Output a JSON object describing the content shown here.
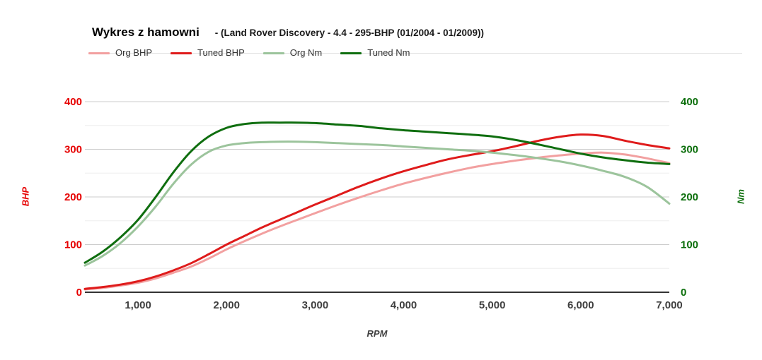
{
  "header": {
    "title": "Wykres z hamowni",
    "subtitle": "- (Land Rover Discovery - 4.4 - 295-BHP (01/2004 - 01/2009))"
  },
  "axes": {
    "left_title": "BHP",
    "right_title": "Nm",
    "bottom_title": "RPM",
    "left_color": "#e60000",
    "right_color": "#0b6e0b",
    "x_tick_color": "#3f3f3f"
  },
  "colors": {
    "org_bhp": "#f2a0a0",
    "tuned_bhp": "#df1b1b",
    "org_nm": "#9cc49c",
    "tuned_nm": "#0f6e0f",
    "grid_major": "#cccccc",
    "grid_minor": "#ededed",
    "baseline": "#333333"
  },
  "chart_data": {
    "type": "line",
    "title": "Wykres z hamowni - (Land Rover Discovery - 4.4 - 295-BHP (01/2004 - 01/2009))",
    "xlabel": "RPM",
    "ylabel_left": "BHP",
    "ylabel_right": "Nm",
    "xlim": [
      400,
      7000
    ],
    "ylim": [
      0,
      400
    ],
    "grid": true,
    "legend_position": "top",
    "x_ticks": [
      1000,
      2000,
      3000,
      4000,
      5000,
      6000,
      7000
    ],
    "x_tick_labels": [
      "1,000",
      "2,000",
      "3,000",
      "4,000",
      "5,000",
      "6,000",
      "7,000"
    ],
    "y_ticks": [
      0,
      100,
      200,
      300,
      400
    ],
    "x": [
      400,
      600,
      800,
      1000,
      1200,
      1400,
      1600,
      1800,
      2000,
      2200,
      2400,
      2600,
      2800,
      3000,
      3250,
      3500,
      3750,
      4000,
      4250,
      4500,
      4750,
      5000,
      5250,
      5500,
      5750,
      6000,
      6250,
      6500,
      6750,
      7000
    ],
    "series": [
      {
        "name": "Org BHP",
        "axis": "left",
        "color": "#f2a0a0",
        "values": [
          6,
          9,
          14,
          20,
          29,
          41,
          54,
          71,
          90,
          107,
          123,
          138,
          152,
          166,
          183,
          199,
          214,
          228,
          240,
          251,
          261,
          269,
          276,
          282,
          287,
          291,
          293,
          289,
          281,
          271
        ]
      },
      {
        "name": "Tuned BHP",
        "axis": "left",
        "color": "#df1b1b",
        "values": [
          7,
          11,
          16,
          23,
          33,
          46,
          61,
          80,
          100,
          118,
          136,
          152,
          168,
          184,
          203,
          222,
          239,
          254,
          267,
          279,
          288,
          296,
          306,
          317,
          326,
          331,
          328,
          318,
          309,
          302
        ]
      },
      {
        "name": "Org Nm",
        "axis": "right",
        "color": "#9cc49c",
        "values": [
          56,
          76,
          103,
          138,
          180,
          228,
          268,
          295,
          308,
          313,
          315,
          316,
          316,
          315,
          313,
          311,
          309,
          306,
          303,
          300,
          297,
          293,
          288,
          282,
          275,
          266,
          255,
          242,
          221,
          186
        ]
      },
      {
        "name": "Tuned Nm",
        "axis": "right",
        "color": "#0f6e0f",
        "values": [
          62,
          85,
          115,
          152,
          200,
          252,
          296,
          327,
          345,
          353,
          356,
          356,
          356,
          355,
          352,
          349,
          344,
          340,
          337,
          334,
          331,
          327,
          320,
          311,
          301,
          291,
          283,
          277,
          272,
          269
        ]
      }
    ]
  }
}
